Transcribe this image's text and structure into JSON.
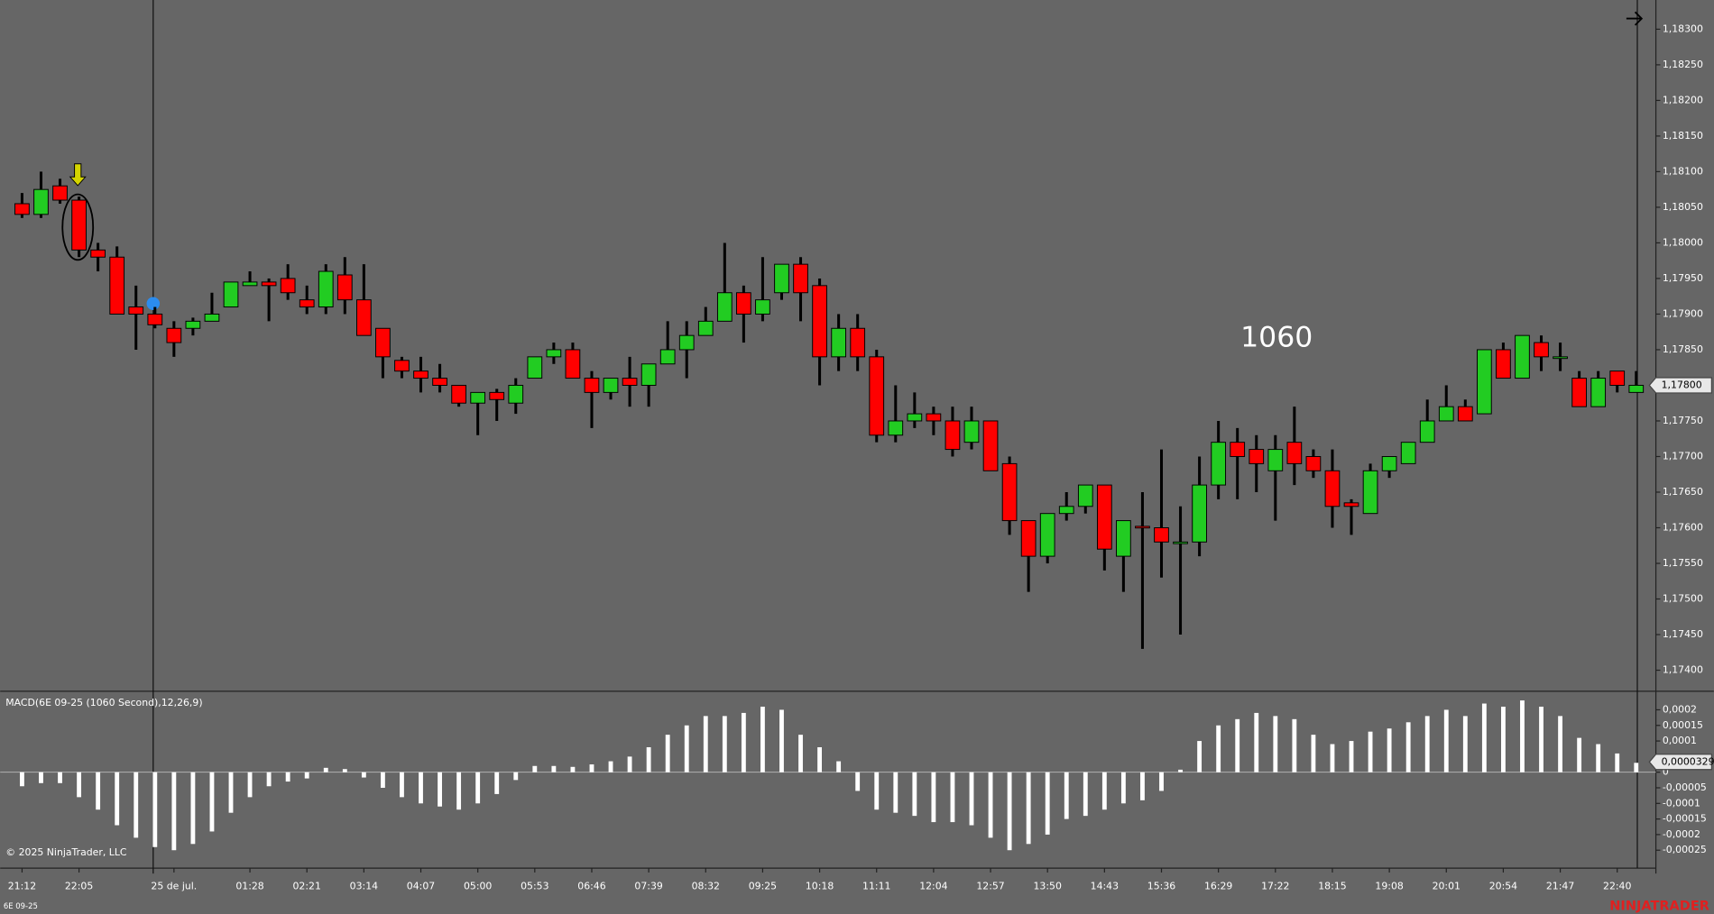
{
  "chart_data": [
    {
      "type": "candlestick",
      "annotation": "1060",
      "categories": [
        "21:12",
        null,
        null,
        "22:05",
        null,
        null,
        null,
        null,
        "25 de jul.",
        null,
        null,
        null,
        "01:28",
        null,
        null,
        "02:21",
        null,
        null,
        "03:14",
        null,
        null,
        "04:07",
        null,
        null,
        "05:00",
        null,
        null,
        "05:53",
        null,
        null,
        "06:46",
        null,
        null,
        "07:39",
        null,
        null,
        "08:32",
        null,
        null,
        "09:25",
        null,
        null,
        "10:18",
        null,
        null,
        "11:11",
        null,
        null,
        "12:04",
        null,
        null,
        "12:57",
        null,
        null,
        "13:50",
        null,
        null,
        "14:43",
        null,
        null,
        "15:36",
        null,
        null,
        "16:29",
        null,
        null,
        "17:22",
        null,
        null,
        "18:15",
        null,
        null,
        "19:08",
        null,
        null,
        "20:01",
        null,
        null,
        "20:54",
        null,
        null,
        "21:47",
        null,
        null,
        "22:40",
        null
      ],
      "open": [
        1.18055,
        1.1804,
        1.1808,
        1.1806,
        1.1799,
        1.1798,
        1.1791,
        1.179,
        1.1788,
        1.1788,
        1.1789,
        1.1791,
        1.1794,
        1.17945,
        1.1795,
        1.1792,
        1.1791,
        1.17955,
        1.1792,
        1.1788,
        1.17835,
        1.1782,
        1.1781,
        1.178,
        1.17775,
        1.1779,
        1.17775,
        1.1781,
        1.1784,
        1.1785,
        1.1781,
        1.1779,
        1.1781,
        1.178,
        1.1783,
        1.1785,
        1.1787,
        1.1789,
        1.1793,
        1.179,
        1.1793,
        1.1797,
        1.1794,
        1.1784,
        1.1788,
        1.1784,
        1.1773,
        1.1775,
        1.1776,
        1.1775,
        1.1772,
        1.1775,
        1.1769,
        1.1761,
        1.1756,
        1.1762,
        1.1763,
        1.1766,
        1.1756,
        1.17602,
        1.176,
        1.1758,
        1.1758,
        1.1766,
        1.1772,
        1.1771,
        1.1768,
        1.1772,
        1.177,
        1.1768,
        1.17635,
        1.1762,
        1.1768,
        1.1769,
        1.1772,
        1.1775,
        1.1777,
        1.1776,
        1.1785,
        1.1781,
        1.1786,
        1.1784,
        1.1781,
        1.1777,
        1.1782,
        1.1779
      ],
      "high": [
        1.1807,
        1.181,
        1.1809,
        1.18065,
        1.18,
        1.17995,
        1.1794,
        1.1791,
        1.1789,
        1.17895,
        1.1793,
        1.17945,
        1.1796,
        1.1795,
        1.1797,
        1.1794,
        1.1797,
        1.1798,
        1.1797,
        1.1788,
        1.1784,
        1.1784,
        1.1783,
        1.178,
        1.1779,
        1.17795,
        1.1781,
        1.1784,
        1.1786,
        1.1786,
        1.1782,
        1.1781,
        1.1784,
        1.1783,
        1.1789,
        1.1789,
        1.1791,
        1.18,
        1.1794,
        1.1798,
        1.1797,
        1.1798,
        1.1795,
        1.179,
        1.179,
        1.1785,
        1.178,
        1.1779,
        1.1777,
        1.1777,
        1.1777,
        1.1775,
        1.177,
        1.1761,
        1.1762,
        1.1765,
        1.1766,
        1.1766,
        1.1761,
        1.1765,
        1.1771,
        1.1763,
        1.177,
        1.1775,
        1.1774,
        1.1773,
        1.1773,
        1.1777,
        1.1771,
        1.1771,
        1.1764,
        1.1769,
        1.177,
        1.1772,
        1.1778,
        1.178,
        1.1778,
        1.1785,
        1.1786,
        1.1787,
        1.1787,
        1.1786,
        1.1782,
        1.1782,
        1.1782,
        1.1782
      ],
      "low": [
        1.18035,
        1.18035,
        1.18055,
        1.1798,
        1.1796,
        1.179,
        1.1785,
        1.1788,
        1.1784,
        1.1787,
        1.1789,
        1.1791,
        1.1794,
        1.1789,
        1.1792,
        1.179,
        1.179,
        1.179,
        1.1787,
        1.1781,
        1.1781,
        1.1779,
        1.1779,
        1.1777,
        1.1773,
        1.1775,
        1.1776,
        1.1781,
        1.1783,
        1.1781,
        1.1774,
        1.1778,
        1.1777,
        1.1777,
        1.1783,
        1.1781,
        1.1787,
        1.1789,
        1.1786,
        1.1789,
        1.1792,
        1.1789,
        1.178,
        1.1782,
        1.1782,
        1.1772,
        1.1772,
        1.1774,
        1.1773,
        1.177,
        1.1771,
        1.1768,
        1.1759,
        1.1751,
        1.1755,
        1.1761,
        1.1762,
        1.1754,
        1.1751,
        1.1743,
        1.1753,
        1.1745,
        1.1756,
        1.1764,
        1.1764,
        1.1765,
        1.1761,
        1.1766,
        1.1767,
        1.176,
        1.1759,
        1.1762,
        1.1767,
        1.1769,
        1.1772,
        1.1775,
        1.1775,
        1.1776,
        1.1781,
        1.1781,
        1.1782,
        1.1782,
        1.1777,
        1.1777,
        1.1779,
        1.1779
      ],
      "close": [
        1.1804,
        1.18075,
        1.1806,
        1.1799,
        1.1798,
        1.179,
        1.179,
        1.17885,
        1.1786,
        1.1789,
        1.179,
        1.17945,
        1.17945,
        1.1794,
        1.1793,
        1.1791,
        1.1796,
        1.1792,
        1.1787,
        1.1784,
        1.1782,
        1.1781,
        1.178,
        1.17775,
        1.1779,
        1.1778,
        1.178,
        1.1784,
        1.1785,
        1.1781,
        1.1779,
        1.1781,
        1.178,
        1.1783,
        1.1785,
        1.1787,
        1.1789,
        1.1793,
        1.179,
        1.1792,
        1.1797,
        1.1793,
        1.1784,
        1.1788,
        1.1784,
        1.1773,
        1.1775,
        1.1776,
        1.1775,
        1.1771,
        1.1775,
        1.1768,
        1.1761,
        1.1756,
        1.1762,
        1.1763,
        1.1766,
        1.1757,
        1.1761,
        1.176,
        1.1758,
        1.1758,
        1.1766,
        1.1772,
        1.177,
        1.1769,
        1.1771,
        1.1769,
        1.1768,
        1.1763,
        1.1763,
        1.1768,
        1.177,
        1.1772,
        1.1775,
        1.1777,
        1.1775,
        1.1785,
        1.1781,
        1.1787,
        1.1784,
        1.1784,
        1.1777,
        1.1781,
        1.178,
        1.178
      ],
      "up_color": "#22cc22",
      "down_color": "#ff0000",
      "ylim": [
        1.17372,
        1.18341
      ],
      "yticks": [
        {
          "value": 1.174,
          "label": "1,17400"
        },
        {
          "value": 1.1745,
          "label": "1,17450"
        },
        {
          "value": 1.175,
          "label": "1,17500"
        },
        {
          "value": 1.1755,
          "label": "1,17550"
        },
        {
          "value": 1.176,
          "label": "1,17600"
        },
        {
          "value": 1.1765,
          "label": "1,17650"
        },
        {
          "value": 1.177,
          "label": "1,17700"
        },
        {
          "value": 1.1775,
          "label": "1,17750"
        },
        {
          "value": 1.178,
          "label": "1,17800"
        },
        {
          "value": 1.1785,
          "label": "1,17850"
        },
        {
          "value": 1.179,
          "label": "1,17900"
        },
        {
          "value": 1.1795,
          "label": "1,17950"
        },
        {
          "value": 1.18,
          "label": "1,18000"
        },
        {
          "value": 1.1805,
          "label": "1,18050"
        },
        {
          "value": 1.181,
          "label": "1,18100"
        },
        {
          "value": 1.1815,
          "label": "1,18150"
        },
        {
          "value": 1.182,
          "label": "1,18200"
        },
        {
          "value": 1.1825,
          "label": "1,18250"
        },
        {
          "value": 1.183,
          "label": "1,18300"
        }
      ],
      "current_value": 1.178,
      "current_label": "1,17800",
      "grid": false
    },
    {
      "type": "bar",
      "title": "MACD(6E 09-25 (1060 Second),12,26,9)",
      "values": [
        -4.5e-05,
        -3.5e-05,
        -3.5e-05,
        -8e-05,
        -0.00012,
        -0.00017,
        -0.00021,
        -0.00024,
        -0.00025,
        -0.00023,
        -0.00019,
        -0.00013,
        -8e-05,
        -4.5e-05,
        -3e-05,
        -2e-05,
        1.4e-05,
        1e-05,
        -1.7e-05,
        -5e-05,
        -8e-05,
        -0.0001,
        -0.00011,
        -0.00012,
        -0.0001,
        -7e-05,
        -2.5e-05,
        2e-05,
        2e-05,
        1.7e-05,
        2.5e-05,
        3.5e-05,
        5e-05,
        8e-05,
        0.00012,
        0.00015,
        0.00018,
        0.00018,
        0.00019,
        0.00021,
        0.0002,
        0.00012,
        8e-05,
        3.5e-05,
        -6e-05,
        -0.00012,
        -0.00013,
        -0.00014,
        -0.00016,
        -0.00016,
        -0.00017,
        -0.00021,
        -0.00025,
        -0.00023,
        -0.0002,
        -0.00015,
        -0.00014,
        -0.00012,
        -0.0001,
        -9e-05,
        -6e-05,
        8e-06,
        0.0001,
        0.00015,
        0.00017,
        0.00019,
        0.00018,
        0.00017,
        0.00012,
        9e-05,
        0.0001,
        0.00013,
        0.00014,
        0.00016,
        0.00018,
        0.0002,
        0.00018,
        0.00022,
        0.00021,
        0.00023,
        0.00021,
        0.00018,
        0.00011,
        9e-05,
        6e-05,
        3e-05
      ],
      "color": "#ffffff",
      "ylim": [
        -0.00029,
        0.000256
      ],
      "yticks": [
        {
          "value": 0.0002,
          "label": "0,0002"
        },
        {
          "value": 0.00015,
          "label": "0,00015"
        },
        {
          "value": 0.0001,
          "label": "0,0001"
        },
        0,
        {
          "value": -5e-05,
          "label": "-0,00005"
        },
        {
          "value": -0.0001,
          "label": "-0,0001"
        },
        {
          "value": -0.00015,
          "label": "-0,00015"
        },
        {
          "value": -0.0002,
          "label": "-0,0002"
        },
        {
          "value": -0.00025,
          "label": "-0,00025"
        }
      ],
      "current_value": 3.29e-05,
      "current_label": "0,0000329"
    }
  ],
  "footer": {
    "copyright": "© 2025 NinjaTrader, LLC",
    "instrument": "6E 09-25",
    "brand": "NINJATRADER"
  }
}
